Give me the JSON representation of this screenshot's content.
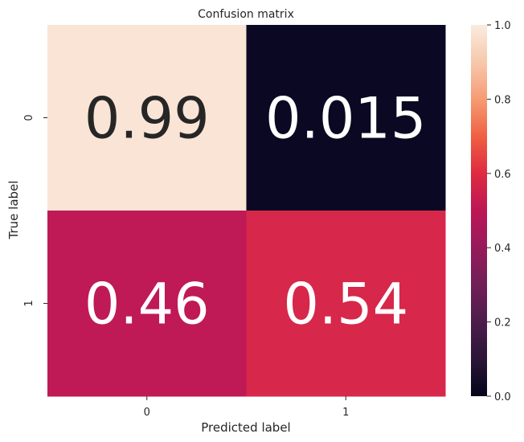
{
  "chart_data": {
    "type": "heatmap",
    "title": "Confusion matrix",
    "xlabel": "Predicted label",
    "ylabel": "True label",
    "x_categories": [
      "0",
      "1"
    ],
    "y_categories": [
      "0",
      "1"
    ],
    "values": [
      [
        0.99,
        0.015
      ],
      [
        0.46,
        0.54
      ]
    ],
    "annotations": [
      [
        "0.99",
        "0.015"
      ],
      [
        "0.46",
        "0.54"
      ]
    ],
    "colorbar": {
      "range": [
        0.0,
        1.0
      ],
      "ticks": [
        0.0,
        0.2,
        0.4,
        0.6,
        0.8,
        1.0
      ],
      "tick_labels": [
        "0.0",
        "0.2",
        "0.4",
        "0.6",
        "0.8",
        "1.0"
      ]
    },
    "colormap": "rocket",
    "colors": {
      "cell_0_0": "#f9e4d6",
      "cell_0_1": "#0b0823",
      "cell_1_0": "#bf1a55",
      "cell_1_1": "#d7274a",
      "annotation_dark": "#262626",
      "annotation_light": "#ffffff"
    }
  }
}
